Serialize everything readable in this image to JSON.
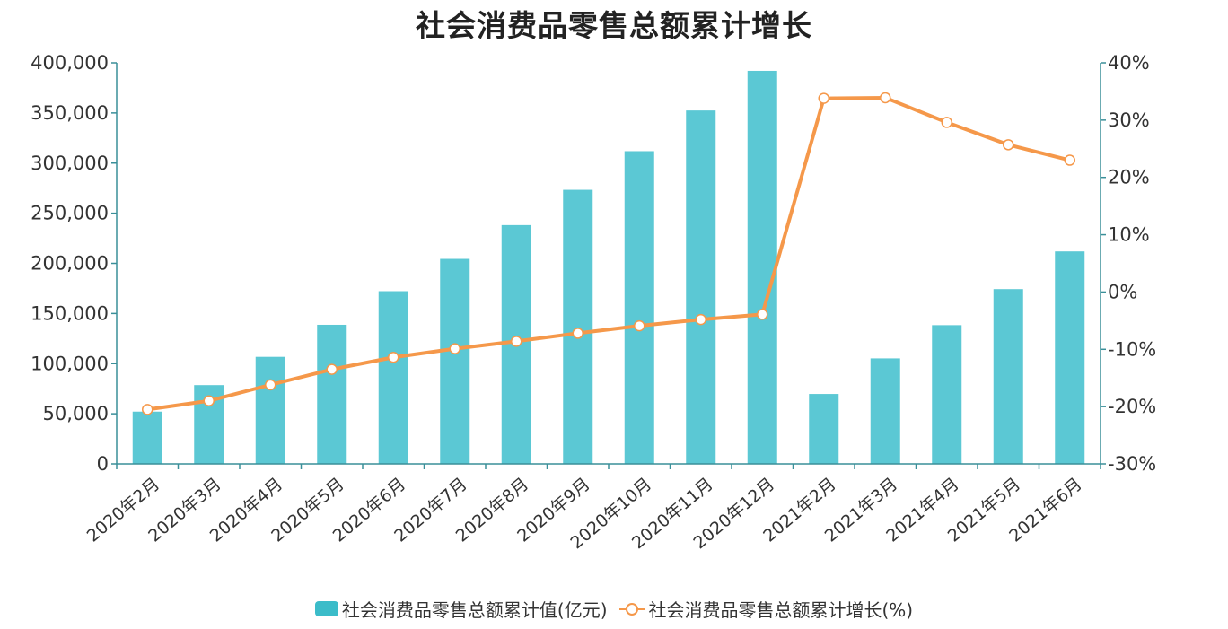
{
  "chart_data": {
    "type": "bar+line",
    "title": "社会消费品零售总额累计增长",
    "categories": [
      "2020年2月",
      "2020年3月",
      "2020年4月",
      "2020年5月",
      "2020年6月",
      "2020年7月",
      "2020年8月",
      "2020年9月",
      "2020年10月",
      "2020年11月",
      "2020年12月",
      "2021年2月",
      "2021年3月",
      "2021年4月",
      "2021年5月",
      "2021年6月"
    ],
    "series": [
      {
        "name": "社会消费品零售总额累计值(亿元)",
        "type": "bar",
        "axis": "left",
        "color": "#5bc8d4",
        "values": [
          52130,
          78580,
          106758,
          138730,
          172256,
          204459,
          238147,
          273324,
          311876,
          352453,
          391981,
          69737,
          105221,
          138373,
          174319,
          211904
        ]
      },
      {
        "name": "社会消费品零售总额累计增长(%)",
        "type": "line",
        "axis": "right",
        "color": "#f5984a",
        "values": [
          -20.5,
          -19.0,
          -16.2,
          -13.5,
          -11.4,
          -9.9,
          -8.6,
          -7.2,
          -5.9,
          -4.8,
          -3.9,
          33.8,
          33.9,
          29.6,
          25.7,
          23.0
        ]
      }
    ],
    "y_left": {
      "min": 0,
      "max": 400000,
      "ticks": [
        0,
        50000,
        100000,
        150000,
        200000,
        250000,
        300000,
        350000,
        400000
      ],
      "tick_labels": [
        "0",
        "50,000",
        "100,000",
        "150,000",
        "200,000",
        "250,000",
        "300,000",
        "350,000",
        "400,000"
      ]
    },
    "y_right": {
      "min": -30,
      "max": 40,
      "ticks": [
        -30,
        -20,
        -10,
        0,
        10,
        20,
        30,
        40
      ],
      "tick_labels": [
        "-30%",
        "-20%",
        "-10%",
        "0%",
        "10%",
        "20%",
        "30%",
        "40%"
      ]
    },
    "legend_position": "bottom",
    "grid": false
  },
  "colors": {
    "axis": "#3a8f99",
    "bar": "#5bc8d4",
    "legend_bar": "#3bbcc9",
    "line": "#f5984a"
  }
}
